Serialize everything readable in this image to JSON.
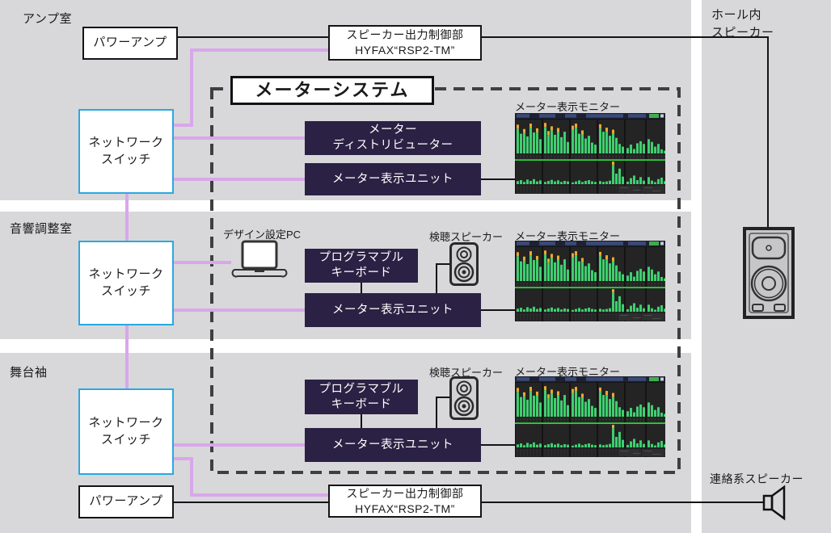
{
  "colors": {
    "band_gray": "#d8d8db",
    "line_pink": "#d9a7e9",
    "switch_border": "#29a9e1",
    "node_dark": "#2b2144",
    "dash": "#3f3f3f"
  },
  "rooms": {
    "amp": "アンプ室",
    "control": "音響調整室",
    "stage": "舞台袖"
  },
  "right_column": {
    "hall_speaker_line1": "ホール内",
    "hall_speaker_line2": "スピーカー",
    "intercom_speaker": "連絡系スピーカー"
  },
  "nodes": {
    "power_amp": "パワーアンプ",
    "speaker_ctrl_line1": "スピーカー出力制御部",
    "speaker_ctrl_line2": "HYFAX“RSP2-TM”",
    "network_switch_line1": "ネットワーク",
    "network_switch_line2": "スイッチ",
    "meter_system_title": "メーターシステム",
    "distributor_line1": "メーター",
    "distributor_line2": "ディストリビューター",
    "display_unit": "メーター表示ユニット",
    "keyboard_line1": "プログラマブル",
    "keyboard_line2": "キーボード",
    "design_pc": "デザイン設定PC",
    "check_speaker": "検聴スピーカー",
    "meter_monitor_label": "メーター表示モニター"
  },
  "meter_monitor": {
    "bg": "#141414",
    "green": "#3ecf70",
    "peak": "#f2a52e",
    "line": "#2ed23c",
    "row1": [
      85,
      58,
      72,
      50,
      88,
      62,
      74,
      42,
      90,
      66,
      80,
      55,
      75,
      48,
      64,
      34,
      82,
      88,
      58,
      68,
      44,
      52,
      32,
      26,
      86,
      64,
      76,
      52,
      70,
      46,
      28,
      20,
      16,
      26,
      13,
      30,
      36,
      28,
      42,
      34,
      20,
      28,
      12,
      8
    ],
    "row2": [
      12,
      16,
      9,
      18,
      13,
      20,
      11,
      15,
      9,
      13,
      17,
      11,
      15,
      9,
      13,
      11,
      7,
      11,
      15,
      9,
      13,
      16,
      11,
      9,
      12,
      9,
      11,
      14,
      90,
      42,
      62,
      30,
      10,
      24,
      34,
      16,
      28,
      14,
      28,
      14,
      8,
      20,
      26,
      12
    ]
  }
}
